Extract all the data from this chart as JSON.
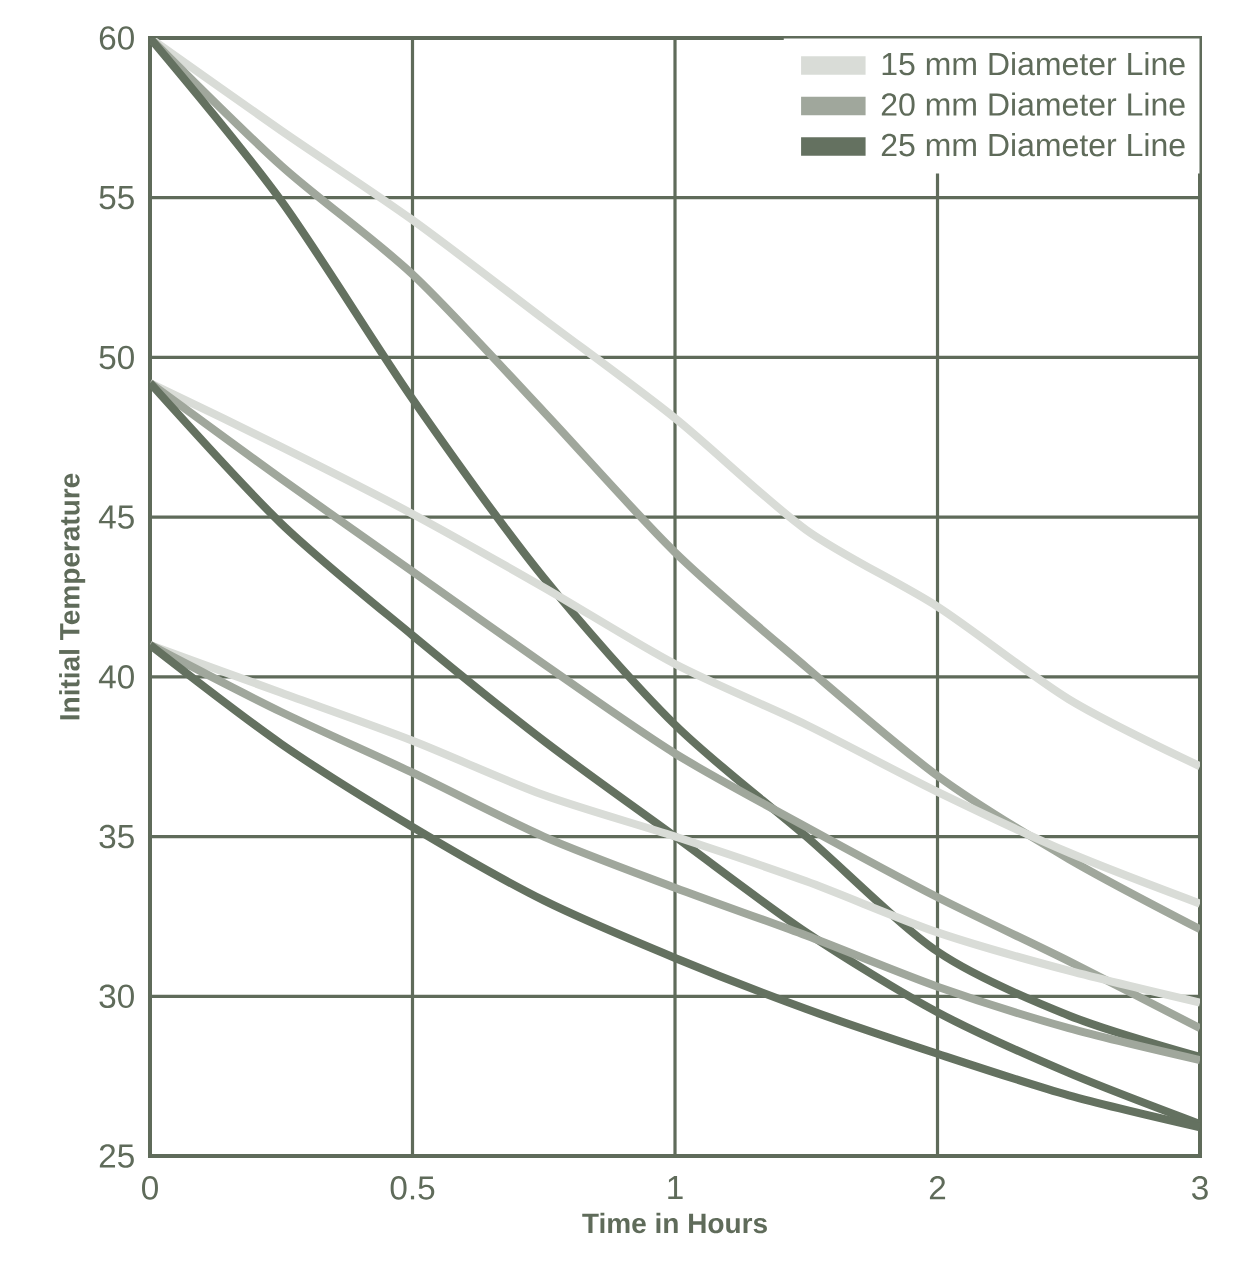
{
  "chart_data": {
    "type": "line",
    "xlabel": "Time in Hours",
    "ylabel": "Initial Temperature",
    "categories": [
      "0",
      null,
      "0.5",
      null,
      "1",
      null,
      "2",
      null,
      "3"
    ],
    "series": [
      {
        "name": "15 mm Diameter Line",
        "color": "#d9dcd7",
        "values": [
          60,
          57.1,
          54.3,
          51.2,
          48.1,
          44.6,
          42.2,
          39.3,
          37.2
        ]
      },
      {
        "name": "20 mm Diameter Line",
        "color": "#a0a79c",
        "values": [
          60,
          56.0,
          52.6,
          48.3,
          43.9,
          40.3,
          36.9,
          34.3,
          32.1
        ]
      },
      {
        "name": "25 mm Diameter Line",
        "color": "#647160",
        "values": [
          60,
          54.9,
          48.7,
          43.1,
          38.5,
          35.0,
          31.4,
          29.4,
          28.1
        ]
      },
      {
        "color": "#d9dcd7",
        "values": [
          49.2,
          47.2,
          45.1,
          42.8,
          40.4,
          38.5,
          36.4,
          34.5,
          32.9
        ]
      },
      {
        "color": "#a0a79c",
        "values": [
          49.2,
          46.2,
          43.3,
          40.4,
          37.6,
          35.3,
          33.1,
          31.1,
          29.0
        ]
      },
      {
        "color": "#647160",
        "values": [
          49.2,
          44.8,
          41.3,
          38.0,
          35.0,
          32.0,
          29.5,
          27.6,
          26.0
        ]
      },
      {
        "color": "#d9dcd7",
        "values": [
          41,
          39.5,
          38.0,
          36.3,
          35.0,
          33.6,
          32.0,
          30.8,
          29.8
        ]
      },
      {
        "color": "#a0a79c",
        "values": [
          41,
          38.9,
          37.0,
          35.0,
          33.4,
          31.9,
          30.3,
          29.0,
          28.0
        ]
      },
      {
        "color": "#647160",
        "values": [
          41,
          37.9,
          35.3,
          33.0,
          31.2,
          29.6,
          28.2,
          26.9,
          25.9
        ]
      }
    ],
    "ylim": [
      25,
      60
    ],
    "yticks": [
      25,
      30,
      35,
      40,
      45,
      50,
      55,
      60
    ],
    "grid": true,
    "legend": "top right"
  }
}
